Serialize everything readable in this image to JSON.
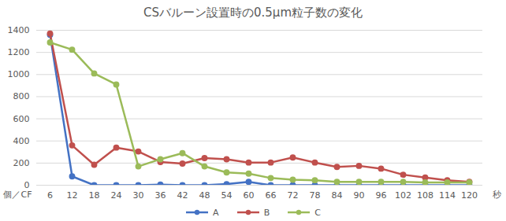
{
  "chart_data": {
    "type": "line",
    "title": "CSバルーン設置時の0.5μm粒子数の変化",
    "x_label": "秒",
    "y_label": "個／CF",
    "categories": [
      6,
      12,
      18,
      24,
      30,
      36,
      42,
      48,
      54,
      60,
      66,
      72,
      78,
      84,
      90,
      96,
      102,
      108,
      114,
      120
    ],
    "series": [
      {
        "name": "A",
        "color": "#4472c4",
        "values": [
          1360,
          80,
          0,
          0,
          0,
          5,
          0,
          0,
          10,
          30,
          0,
          0,
          0,
          0,
          0,
          0,
          0,
          0,
          0,
          0
        ]
      },
      {
        "name": "B",
        "color": "#c0504d",
        "values": [
          1370,
          360,
          185,
          340,
          305,
          210,
          195,
          245,
          235,
          205,
          205,
          250,
          205,
          165,
          175,
          150,
          95,
          70,
          45,
          30
        ]
      },
      {
        "name": "C",
        "color": "#9bbb59",
        "values": [
          1290,
          1225,
          1010,
          910,
          170,
          235,
          290,
          170,
          115,
          105,
          65,
          50,
          45,
          30,
          30,
          30,
          30,
          25,
          25,
          25
        ]
      }
    ],
    "ylim": [
      0,
      1400
    ],
    "yticks": [
      0,
      200,
      400,
      600,
      800,
      1000,
      1200,
      1400
    ],
    "grid": true,
    "legend": "bottom",
    "marker": "circle"
  }
}
